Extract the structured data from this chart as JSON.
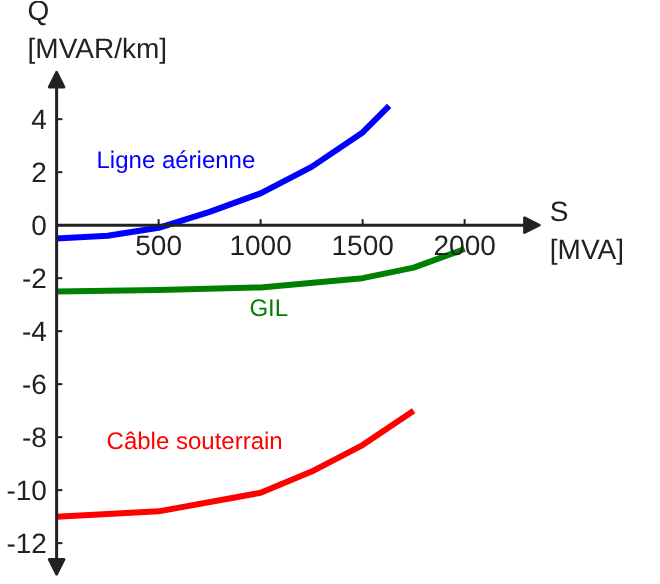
{
  "chart_data": {
    "type": "line",
    "xlabel": "S\n[MVA]",
    "ylabel": "Q\n[MVAR/km]",
    "xlim": [
      0,
      2370
    ],
    "ylim": [
      -13.2,
      5.8
    ],
    "xticks": [
      500,
      1000,
      1500,
      2000
    ],
    "yticks": [
      -12,
      -10,
      -8,
      -6,
      -4,
      -2,
      0,
      2,
      4
    ],
    "grid": false,
    "marker": "none",
    "line_style": "solid",
    "series": [
      {
        "name": "Ligne aérienne",
        "color": "#0000ff",
        "x": [
          0,
          250,
          500,
          750,
          1000,
          1250,
          1500,
          1630
        ],
        "values": [
          -0.5,
          -0.4,
          -0.1,
          0.5,
          1.2,
          2.2,
          3.5,
          4.5
        ]
      },
      {
        "name": "GIL",
        "color": "#008000",
        "x": [
          0,
          500,
          1000,
          1500,
          1750,
          2000
        ],
        "values": [
          -2.5,
          -2.45,
          -2.35,
          -2.0,
          -1.6,
          -0.9
        ]
      },
      {
        "name": "Câble souterrain",
        "color": "#ff0000",
        "x": [
          0,
          500,
          1000,
          1250,
          1500,
          1750
        ],
        "values": [
          -11,
          -10.8,
          -10.1,
          -9.3,
          -8.3,
          -7.0
        ]
      }
    ]
  }
}
